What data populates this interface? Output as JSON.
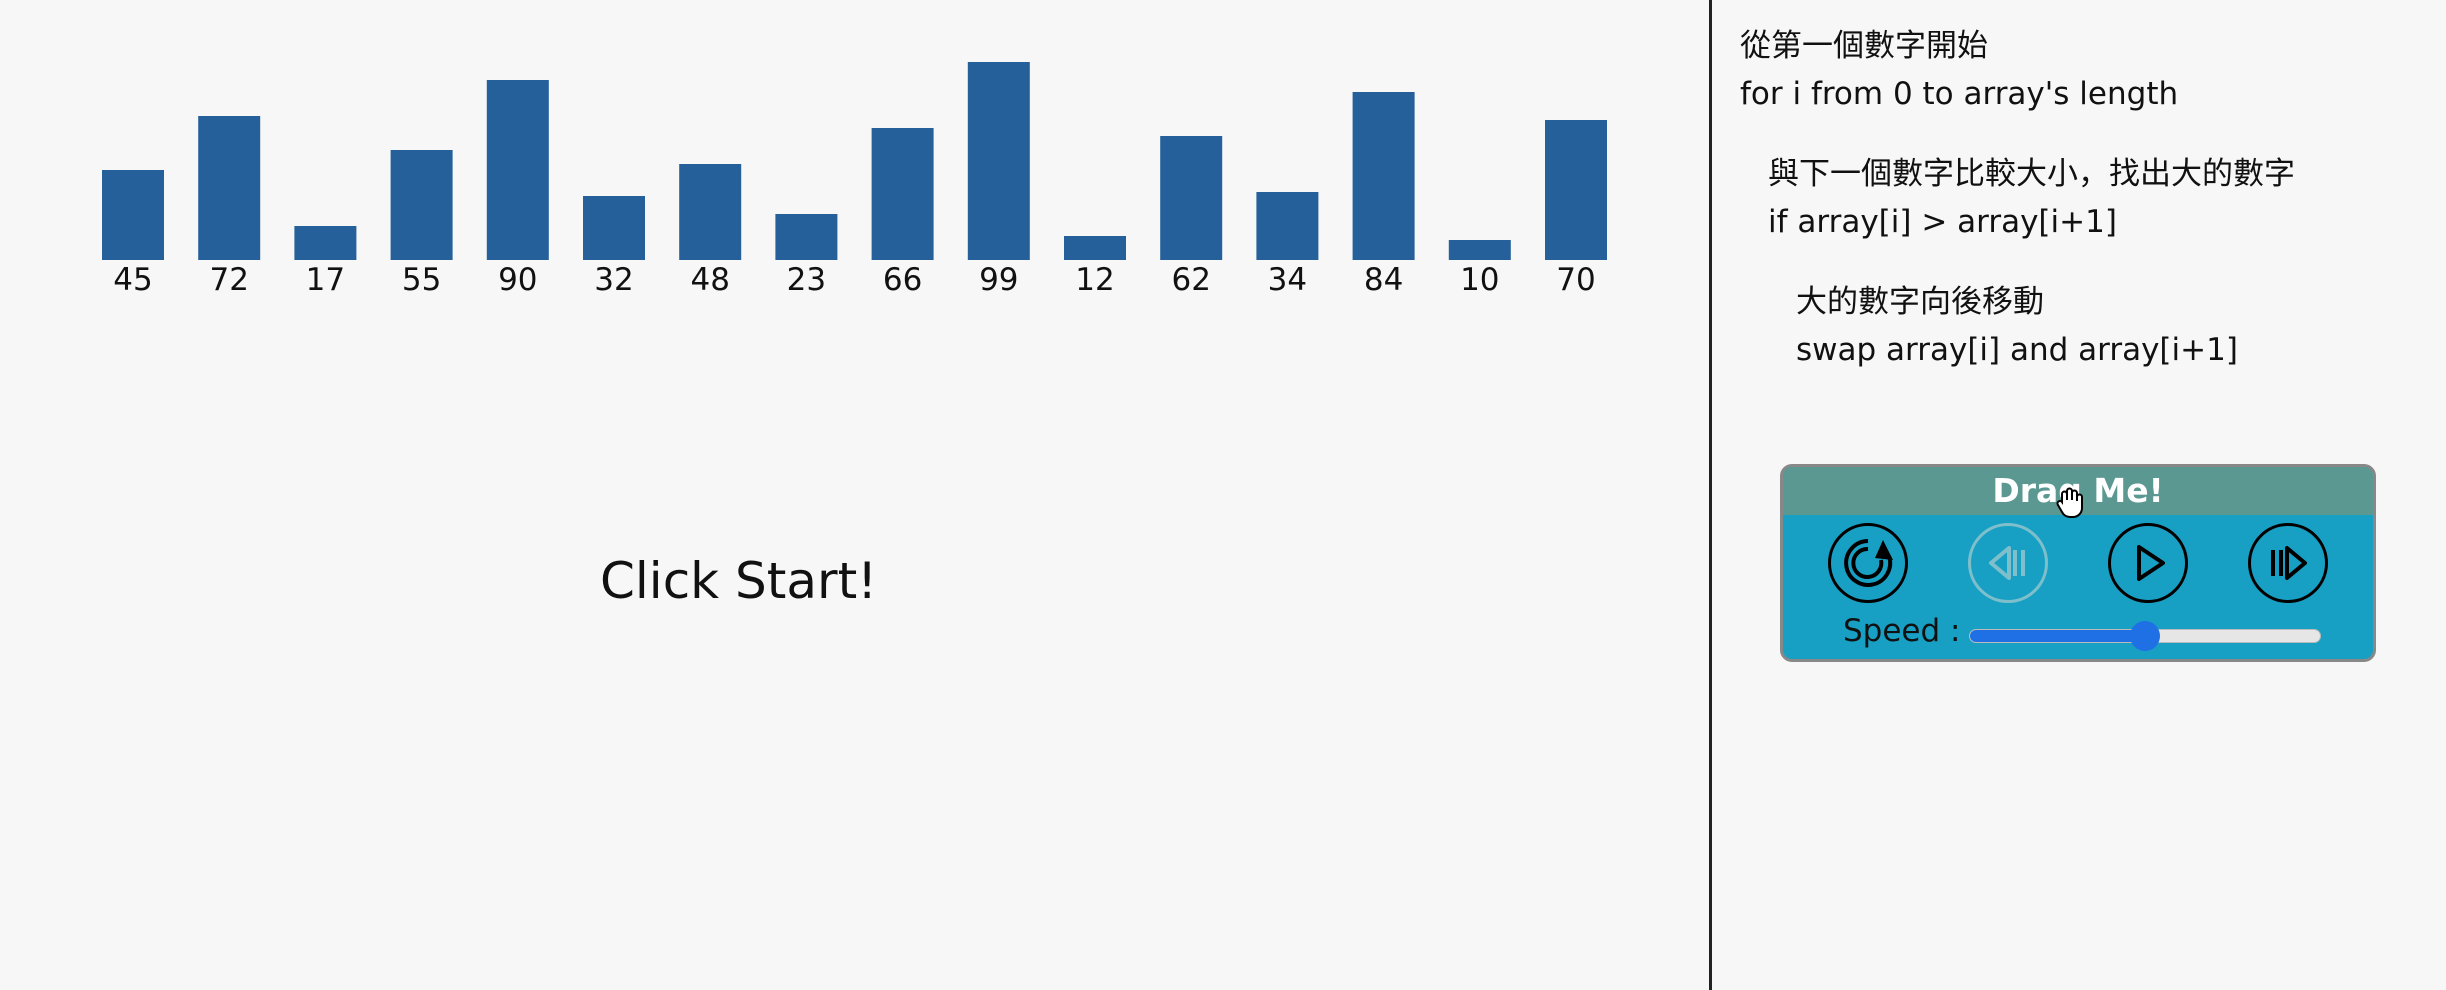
{
  "chart_data": {
    "type": "bar",
    "categories": [
      "45",
      "72",
      "17",
      "55",
      "90",
      "32",
      "48",
      "23",
      "66",
      "99",
      "12",
      "62",
      "34",
      "84",
      "10",
      "70"
    ],
    "values": [
      45,
      72,
      17,
      55,
      90,
      32,
      48,
      23,
      66,
      99,
      12,
      62,
      34,
      84,
      10,
      70
    ],
    "ylim": [
      0,
      99
    ],
    "bar_color": "#25609a",
    "grid": false
  },
  "status": "Click Start!",
  "pseudocode": [
    {
      "zh": "從第一個數字開始",
      "code": "for i from 0 to array's length",
      "indent": 0
    },
    {
      "zh": "與下一個數字比較大小，找出大的數字",
      "code": "if array[i] > array[i+1]",
      "indent": 1
    },
    {
      "zh": "大的數字向後移動",
      "code": "swap array[i] and array[i+1]",
      "indent": 2
    }
  ],
  "panel": {
    "header": "Drag Me!",
    "speed_label": "Speed :",
    "speed": 0.5,
    "buttons": [
      {
        "icon": "reset-icon",
        "enabled": true
      },
      {
        "icon": "step-back-icon",
        "enabled": false
      },
      {
        "icon": "play-icon",
        "enabled": true
      },
      {
        "icon": "step-forward-icon",
        "enabled": true
      }
    ]
  },
  "colors": {
    "panel_body": "#17a0c4",
    "panel_header": "#5b9892",
    "slider": "#1f6fe5"
  }
}
